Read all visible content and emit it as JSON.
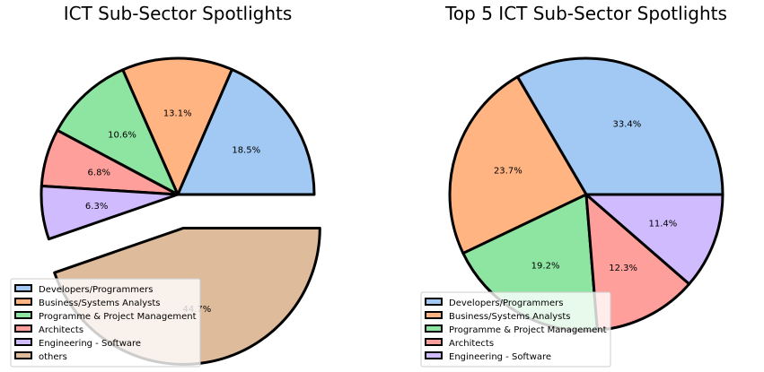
{
  "chart_data": [
    {
      "type": "pie",
      "title": "ICT Sub-Sector Spotlights",
      "categories": [
        "Developers/Programmers",
        "Business/Systems Analysts",
        "Programme & Project Management",
        "Architects",
        "Engineering - Software",
        "others"
      ],
      "values": [
        18.5,
        13.1,
        10.6,
        6.8,
        6.3,
        44.7
      ],
      "labels": [
        "18.5%",
        "13.1%",
        "10.6%",
        "6.8%",
        "6.3%",
        "44.7%"
      ],
      "colors": [
        "#a1c9f4",
        "#ffb482",
        "#8de5a1",
        "#ff9f9b",
        "#d0bbff",
        "#debb9b"
      ],
      "explode": [
        0,
        0,
        0,
        0,
        0,
        0.25
      ],
      "start_angle_deg": 0,
      "direction": "counterclockwise",
      "legend_position": "lower-left"
    },
    {
      "type": "pie",
      "title": "Top 5 ICT Sub-Sector Spotlights",
      "categories": [
        "Developers/Programmers",
        "Business/Systems Analysts",
        "Programme & Project Management",
        "Architects",
        "Engineering - Software"
      ],
      "values": [
        33.4,
        23.7,
        19.2,
        12.3,
        11.4
      ],
      "labels": [
        "33.4%",
        "23.7%",
        "19.2%",
        "12.3%",
        "11.4%"
      ],
      "colors": [
        "#a1c9f4",
        "#ffb482",
        "#8de5a1",
        "#ff9f9b",
        "#d0bbff"
      ],
      "explode": [
        0,
        0,
        0,
        0,
        0
      ],
      "start_angle_deg": 0,
      "direction": "counterclockwise",
      "legend_position": "lower-left"
    }
  ]
}
